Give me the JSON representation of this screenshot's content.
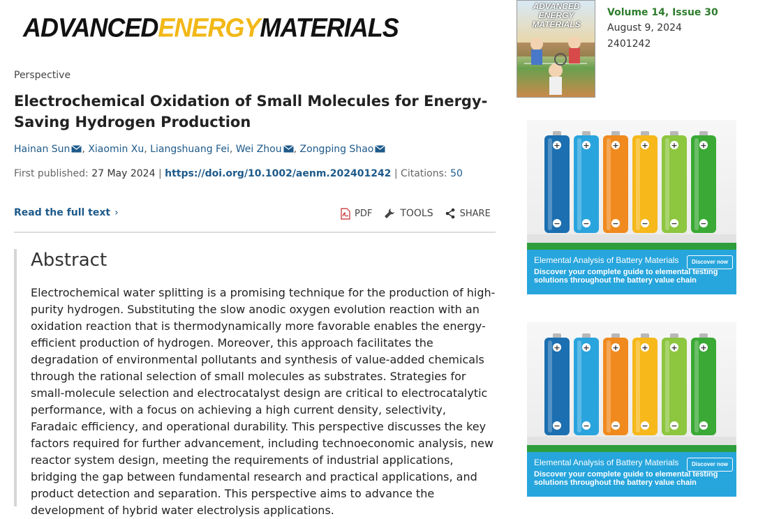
{
  "journal": {
    "logo_words": [
      "ADVANCED",
      "ENERGY",
      "MATERIALS"
    ]
  },
  "article": {
    "type": "Perspective",
    "title": "Electrochemical Oxidation of Small Molecules for Energy-Saving Hydrogen Production",
    "authors": [
      "Hainan Sun",
      "Xiaomin Xu",
      "Liangshuang Fei",
      "Wei Zhou",
      "Zongping Shao"
    ],
    "meta": {
      "first_published_label": "First published:",
      "first_published": "27 May 2024",
      "doi": "https://doi.org/10.1002/aenm.202401242",
      "citations_label": "Citations:",
      "citations": "50"
    },
    "read_full_text": "Read the full text",
    "toolbar": {
      "pdf": "PDF",
      "tools": "TOOLS",
      "share": "SHARE"
    }
  },
  "abstract": {
    "heading": "Abstract",
    "text": "Electrochemical water splitting is a promising technique for the production of high-purity hydrogen. Substituting the slow anodic oxygen evolution reaction with an oxidation reaction that is thermodynamically more favorable enables the energy-efficient production of hydrogen. Moreover, this approach facilitates the degradation of environmental pollutants and synthesis of value-added chemicals through the rational selection of small molecules as substrates. Strategies for small-molecule selection and electrocatalyst design are critical to electrocatalytic performance, with a focus on achieving a high current density, selectivity, Faradaic efficiency, and operational durability. This perspective discusses the key factors required for further advancement, including technoeconomic analysis, new reactor system design, meeting the requirements of industrial applications, bridging the gap between fundamental research and practical applications, and product detection and separation. This perspective aims to advance the development of hybrid water electrolysis applications."
  },
  "issue": {
    "cover_title": "ADVANCED ENERGY MATERIALS",
    "volume": "Volume 14, Issue 30",
    "date": "August 9, 2024",
    "article_number": "2401242"
  },
  "ads": [
    {
      "title": "Elemental Analysis of Battery Materials",
      "description": "Discover your complete guide to elemental testing solutions throughout the battery value chain",
      "button": "Discover now",
      "battery_colors": [
        "#1c6fb0",
        "#2aa4dd",
        "#f08a1e",
        "#f6b81a",
        "#8dc63f",
        "#3aa935"
      ]
    },
    {
      "title": "Elemental Analysis of Battery Materials",
      "description": "Discover your complete guide to elemental testing solutions throughout the battery value chain",
      "button": "Discover now",
      "battery_colors": [
        "#1c6fb0",
        "#2aa4dd",
        "#f08a1e",
        "#f6b81a",
        "#8dc63f",
        "#3aa935"
      ]
    }
  ],
  "colors": {
    "link": "#1e5a8a",
    "volume": "#2d7d2d",
    "logo_accent": "#f2b818",
    "ad_blue": "#27a5dd",
    "ad_green": "#2e9e3c"
  }
}
